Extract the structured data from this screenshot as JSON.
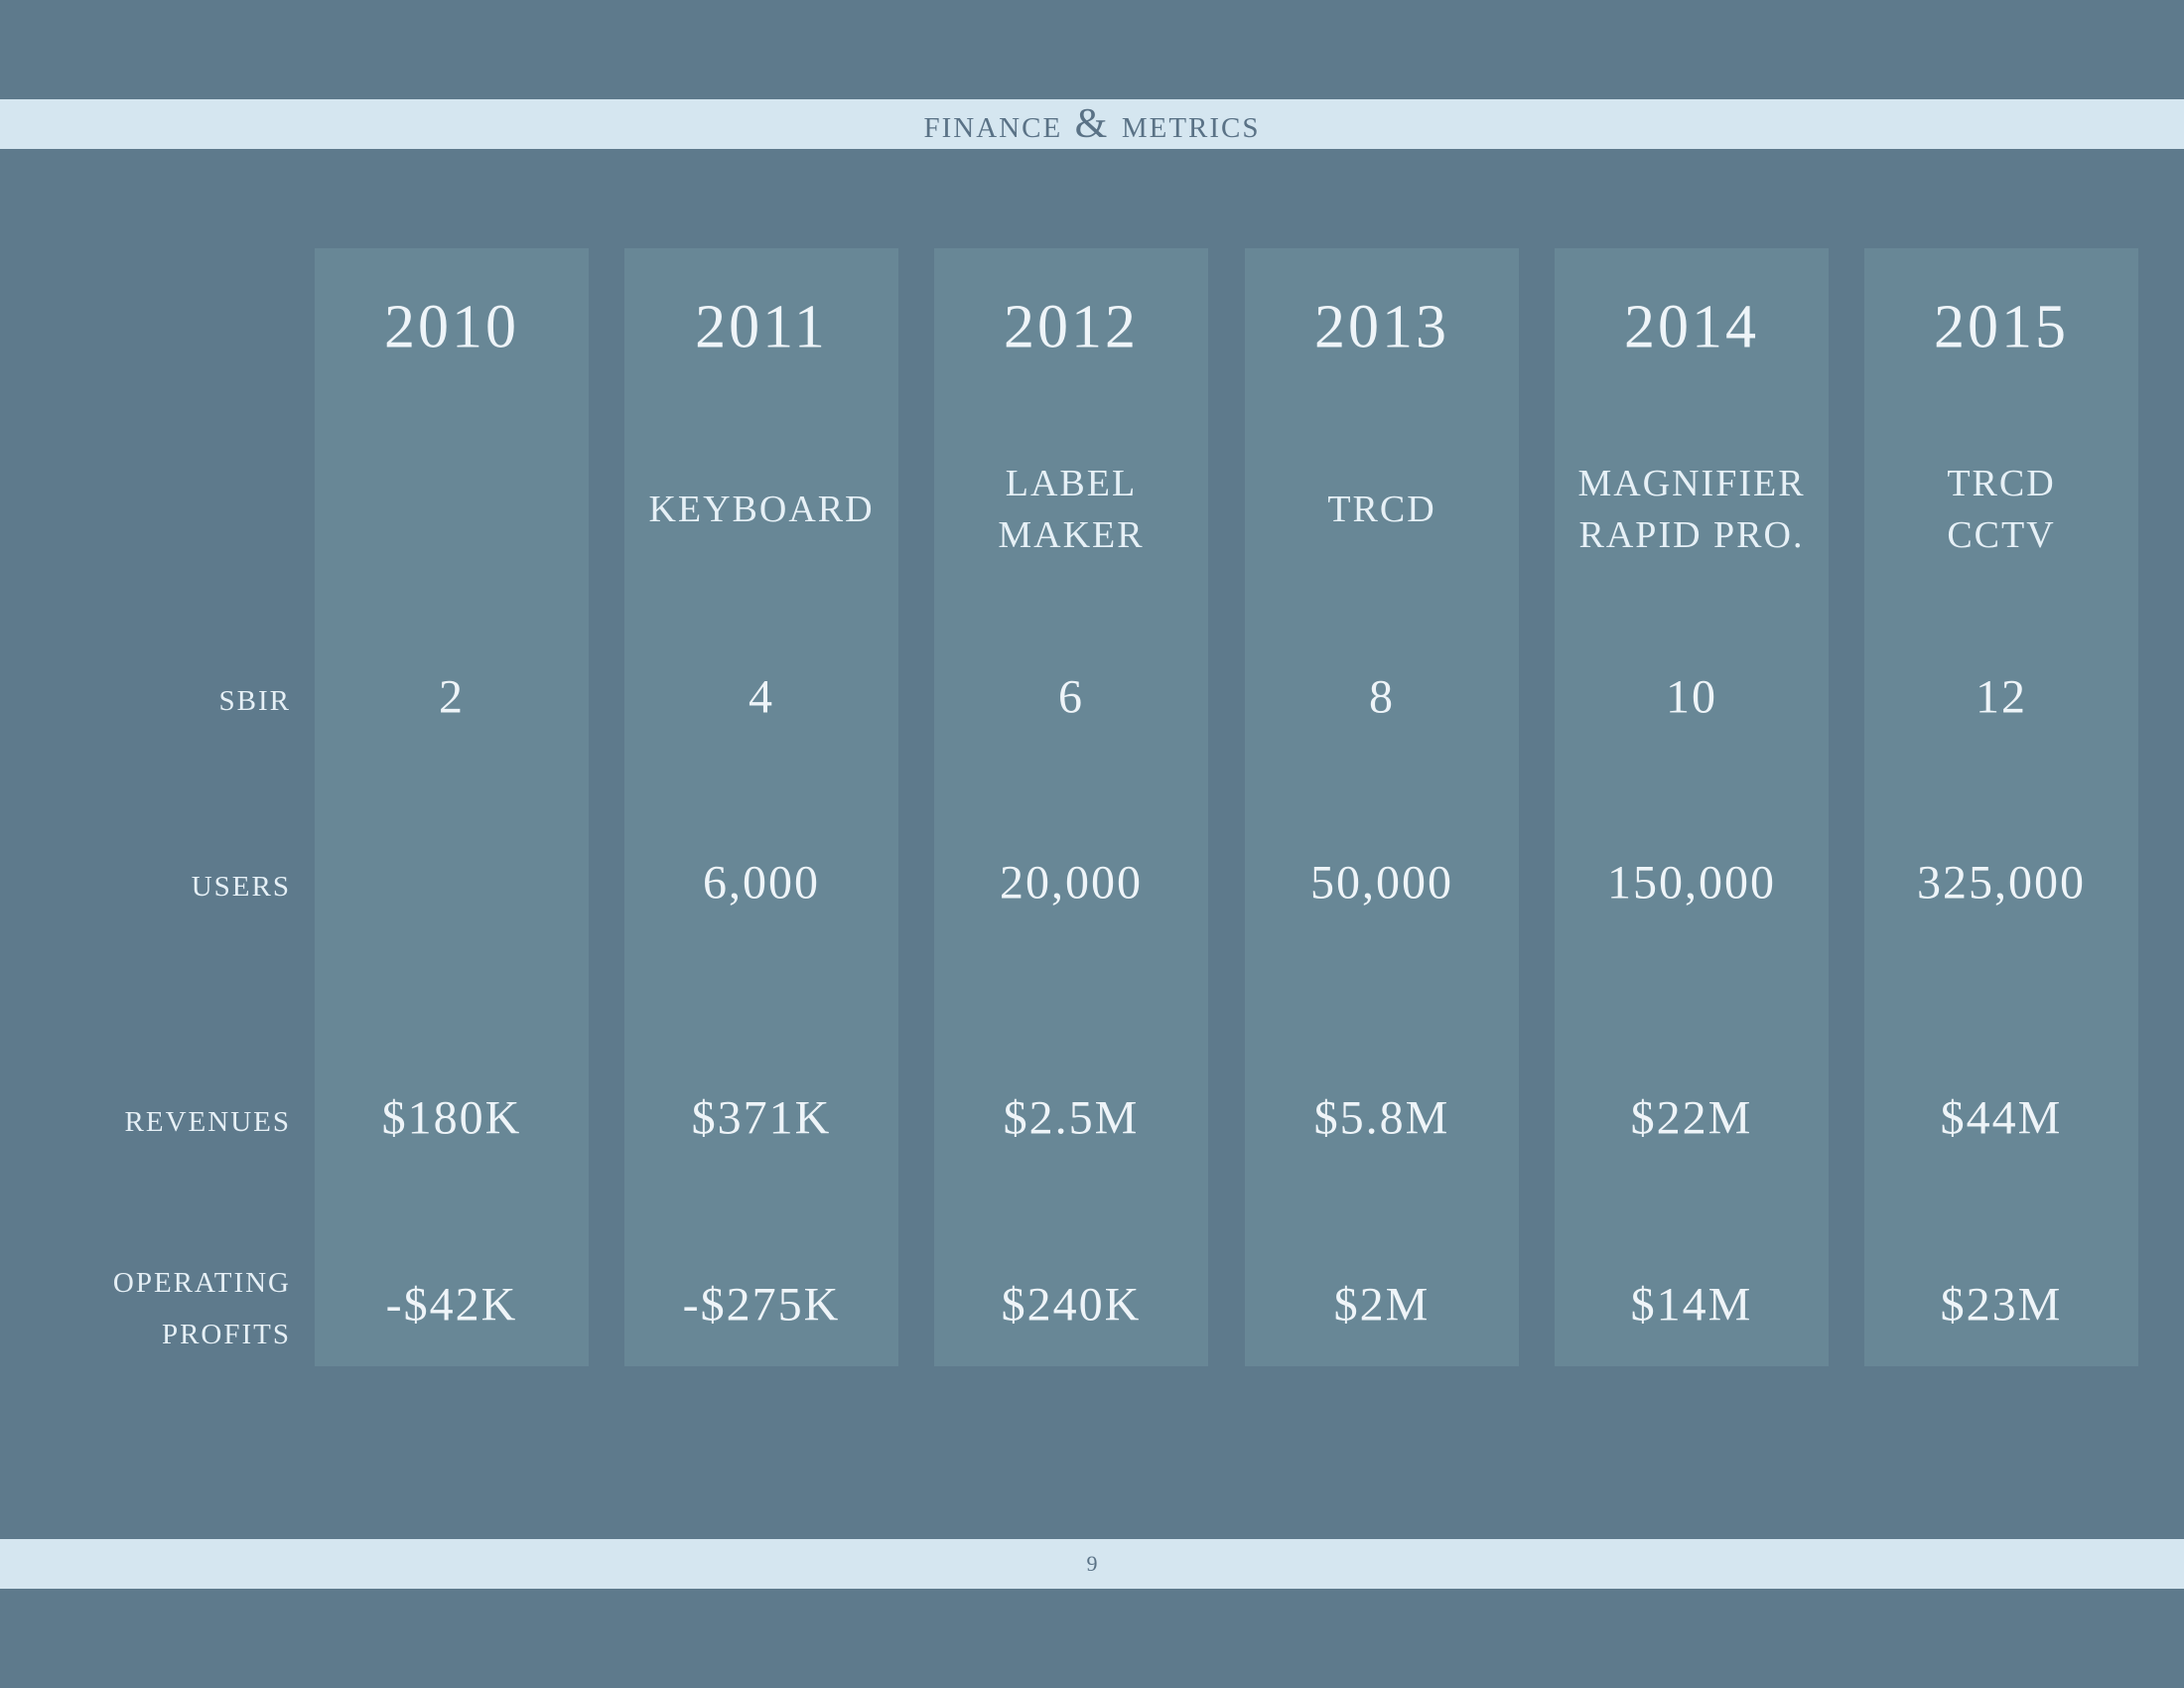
{
  "header": {
    "title": "FINANCE & METRICS"
  },
  "footer": {
    "page_number": "9"
  },
  "row_labels": {
    "sbir": "SBIR",
    "users": "USERS",
    "revenues": "REVENUES",
    "operating_profits": "OPERATING\nPROFITS"
  },
  "columns": [
    {
      "year": "2010",
      "product": "",
      "sbir": "2",
      "users": "",
      "revenues": "$180K",
      "operating_profits": "-$42K"
    },
    {
      "year": "2011",
      "product": "KEYBOARD",
      "sbir": "4",
      "users": "6,000",
      "revenues": "$371K",
      "operating_profits": "-$275K"
    },
    {
      "year": "2012",
      "product": "LABEL\nMAKER",
      "sbir": "6",
      "users": "20,000",
      "revenues": "$2.5M",
      "operating_profits": "$240K"
    },
    {
      "year": "2013",
      "product": "TRCD",
      "sbir": "8",
      "users": "50,000",
      "revenues": "$5.8M",
      "operating_profits": "$2M"
    },
    {
      "year": "2014",
      "product": "MAGNIFIER\nRAPID PRO.",
      "sbir": "10",
      "users": "150,000",
      "revenues": "$22M",
      "operating_profits": "$14M"
    },
    {
      "year": "2015",
      "product": "TRCD\nCCTV",
      "sbir": "12",
      "users": "325,000",
      "revenues": "$44M",
      "operating_profits": "$23M"
    }
  ]
}
